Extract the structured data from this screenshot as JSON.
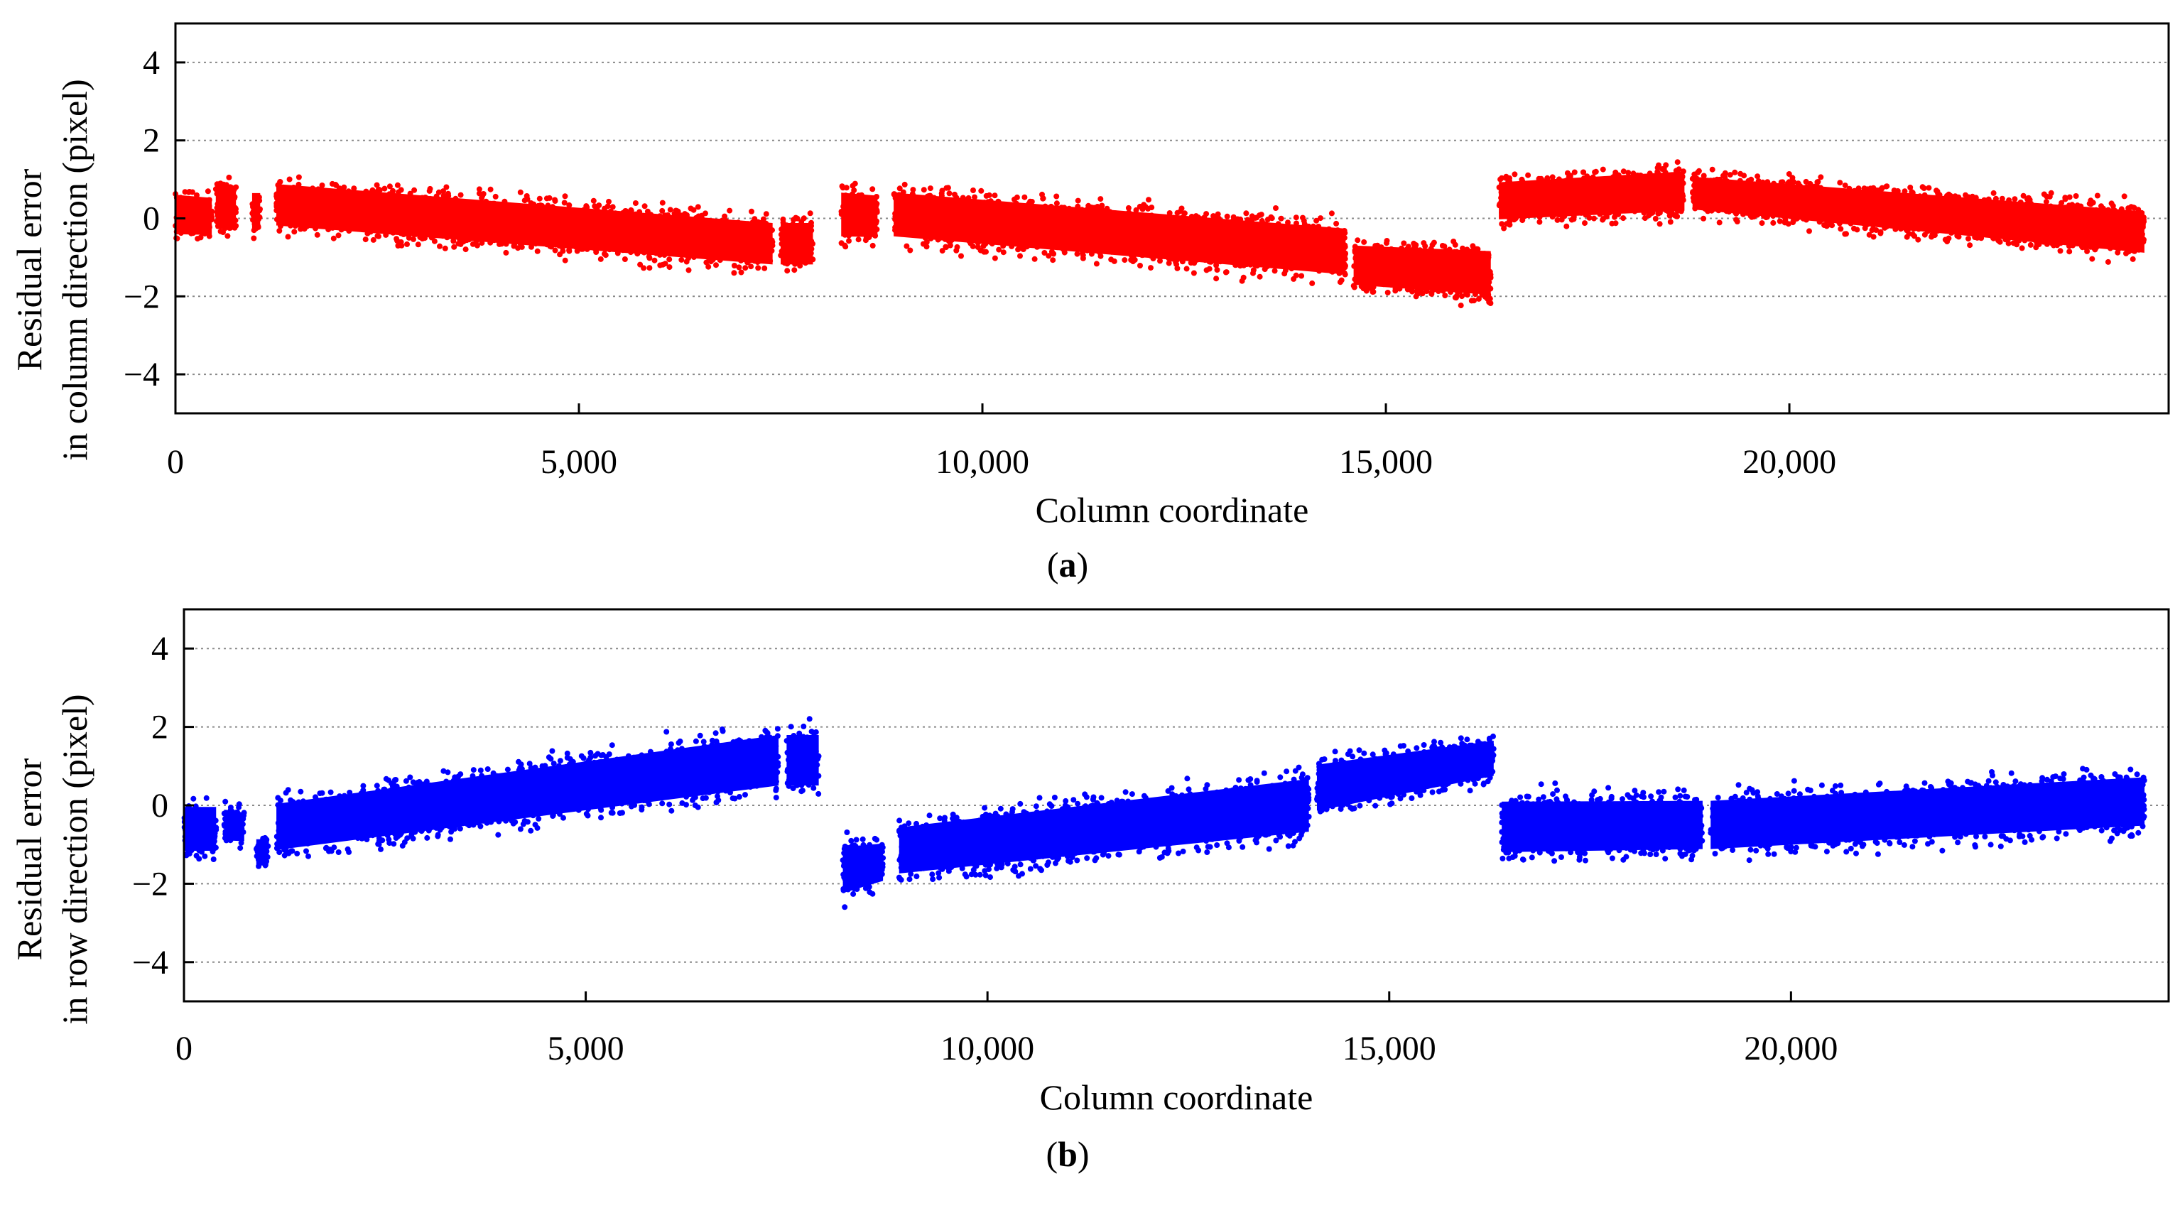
{
  "chart_data": [
    {
      "type": "scatter",
      "panel_label": "a",
      "xlabel": "Column coordinate",
      "ylabel_line1": "Residual error",
      "ylabel_line2": "in column direction (pixel)",
      "xlim": [
        0,
        24700
      ],
      "ylim": [
        -5,
        5
      ],
      "xticks": [
        0,
        5000,
        10000,
        15000,
        20000
      ],
      "xtick_labels": [
        "0",
        "5,000",
        "10,000",
        "15,000",
        "20,000"
      ],
      "yticks": [
        -4,
        -2,
        0,
        2,
        4
      ],
      "ytick_labels": [
        "−4",
        "−2",
        "0",
        "2",
        "4"
      ],
      "grid": "y-dotted",
      "color": "#ff0000",
      "clusters": [
        {
          "x": [
            0,
            450
          ],
          "top": [
            1.0,
            0.9
          ],
          "bottom": [
            -0.8,
            -0.8
          ]
        },
        {
          "x": [
            500,
            750
          ],
          "top": [
            1.3,
            1.2
          ],
          "bottom": [
            -0.7,
            -0.7
          ]
        },
        {
          "x": [
            950,
            1050
          ],
          "top": [
            1.0,
            1.0
          ],
          "bottom": [
            -0.6,
            -0.6
          ]
        },
        {
          "x": [
            1250,
            7400
          ],
          "top": [
            1.3,
            0.3
          ],
          "bottom": [
            -0.6,
            -1.6
          ]
        },
        {
          "x": [
            7500,
            7900
          ],
          "top": [
            0.3,
            0.3
          ],
          "bottom": [
            -1.6,
            -1.6
          ]
        },
        {
          "x": [
            8250,
            8700
          ],
          "top": [
            1.1,
            1.0
          ],
          "bottom": [
            -0.9,
            -0.9
          ]
        },
        {
          "x": [
            8900,
            14500
          ],
          "top": [
            1.1,
            0.2
          ],
          "bottom": [
            -0.9,
            -1.9
          ]
        },
        {
          "x": [
            14600,
            16300
          ],
          "top": [
            -0.3,
            -0.4
          ],
          "bottom": [
            -2.1,
            -2.4
          ]
        },
        {
          "x": [
            16400,
            18700
          ],
          "top": [
            1.3,
            1.6
          ],
          "bottom": [
            -0.4,
            -0.2
          ]
        },
        {
          "x": [
            18800,
            24400
          ],
          "top": [
            1.4,
            0.6
          ],
          "bottom": [
            -0.1,
            -1.3
          ]
        }
      ]
    },
    {
      "type": "scatter",
      "panel_label": "b",
      "xlabel": "Column coordinate",
      "ylabel_line1": "Residual error",
      "ylabel_line2": "in row direction (pixel)",
      "xlim": [
        0,
        24700
      ],
      "ylim": [
        -5,
        5
      ],
      "xticks": [
        0,
        5000,
        10000,
        15000,
        20000
      ],
      "xtick_labels": [
        "0",
        "5,000",
        "10,000",
        "15,000",
        "20,000"
      ],
      "yticks": [
        -4,
        -2,
        0,
        2,
        4
      ],
      "ytick_labels": [
        "−4",
        "−2",
        "0",
        "2",
        "4"
      ],
      "grid": "y-dotted",
      "color": "#0000ff",
      "clusters": [
        {
          "x": [
            0,
            400
          ],
          "top": [
            0.4,
            0.4
          ],
          "bottom": [
            -1.6,
            -1.6
          ]
        },
        {
          "x": [
            500,
            750
          ],
          "top": [
            0.2,
            0.1
          ],
          "bottom": [
            -1.2,
            -1.2
          ]
        },
        {
          "x": [
            900,
            1050
          ],
          "top": [
            -0.6,
            -0.6
          ],
          "bottom": [
            -1.8,
            -1.8
          ]
        },
        {
          "x": [
            1150,
            7400
          ],
          "top": [
            0.5,
            2.3
          ],
          "bottom": [
            -1.6,
            0.0
          ]
        },
        {
          "x": [
            7500,
            7900
          ],
          "top": [
            2.3,
            2.3
          ],
          "bottom": [
            0.0,
            0.0
          ]
        },
        {
          "x": [
            8200,
            8700
          ],
          "top": [
            -0.6,
            -0.6
          ],
          "bottom": [
            -2.7,
            -2.3
          ]
        },
        {
          "x": [
            8900,
            14000
          ],
          "top": [
            -0.1,
            1.2
          ],
          "bottom": [
            -2.2,
            -1.2
          ]
        },
        {
          "x": [
            14100,
            16300
          ],
          "top": [
            1.5,
            2.0
          ],
          "bottom": [
            -0.6,
            0.4
          ]
        },
        {
          "x": [
            16400,
            18900
          ],
          "top": [
            0.6,
            0.6
          ],
          "bottom": [
            -1.7,
            -1.6
          ]
        },
        {
          "x": [
            19000,
            24400
          ],
          "top": [
            0.6,
            1.2
          ],
          "bottom": [
            -1.6,
            -1.0
          ]
        }
      ]
    }
  ]
}
